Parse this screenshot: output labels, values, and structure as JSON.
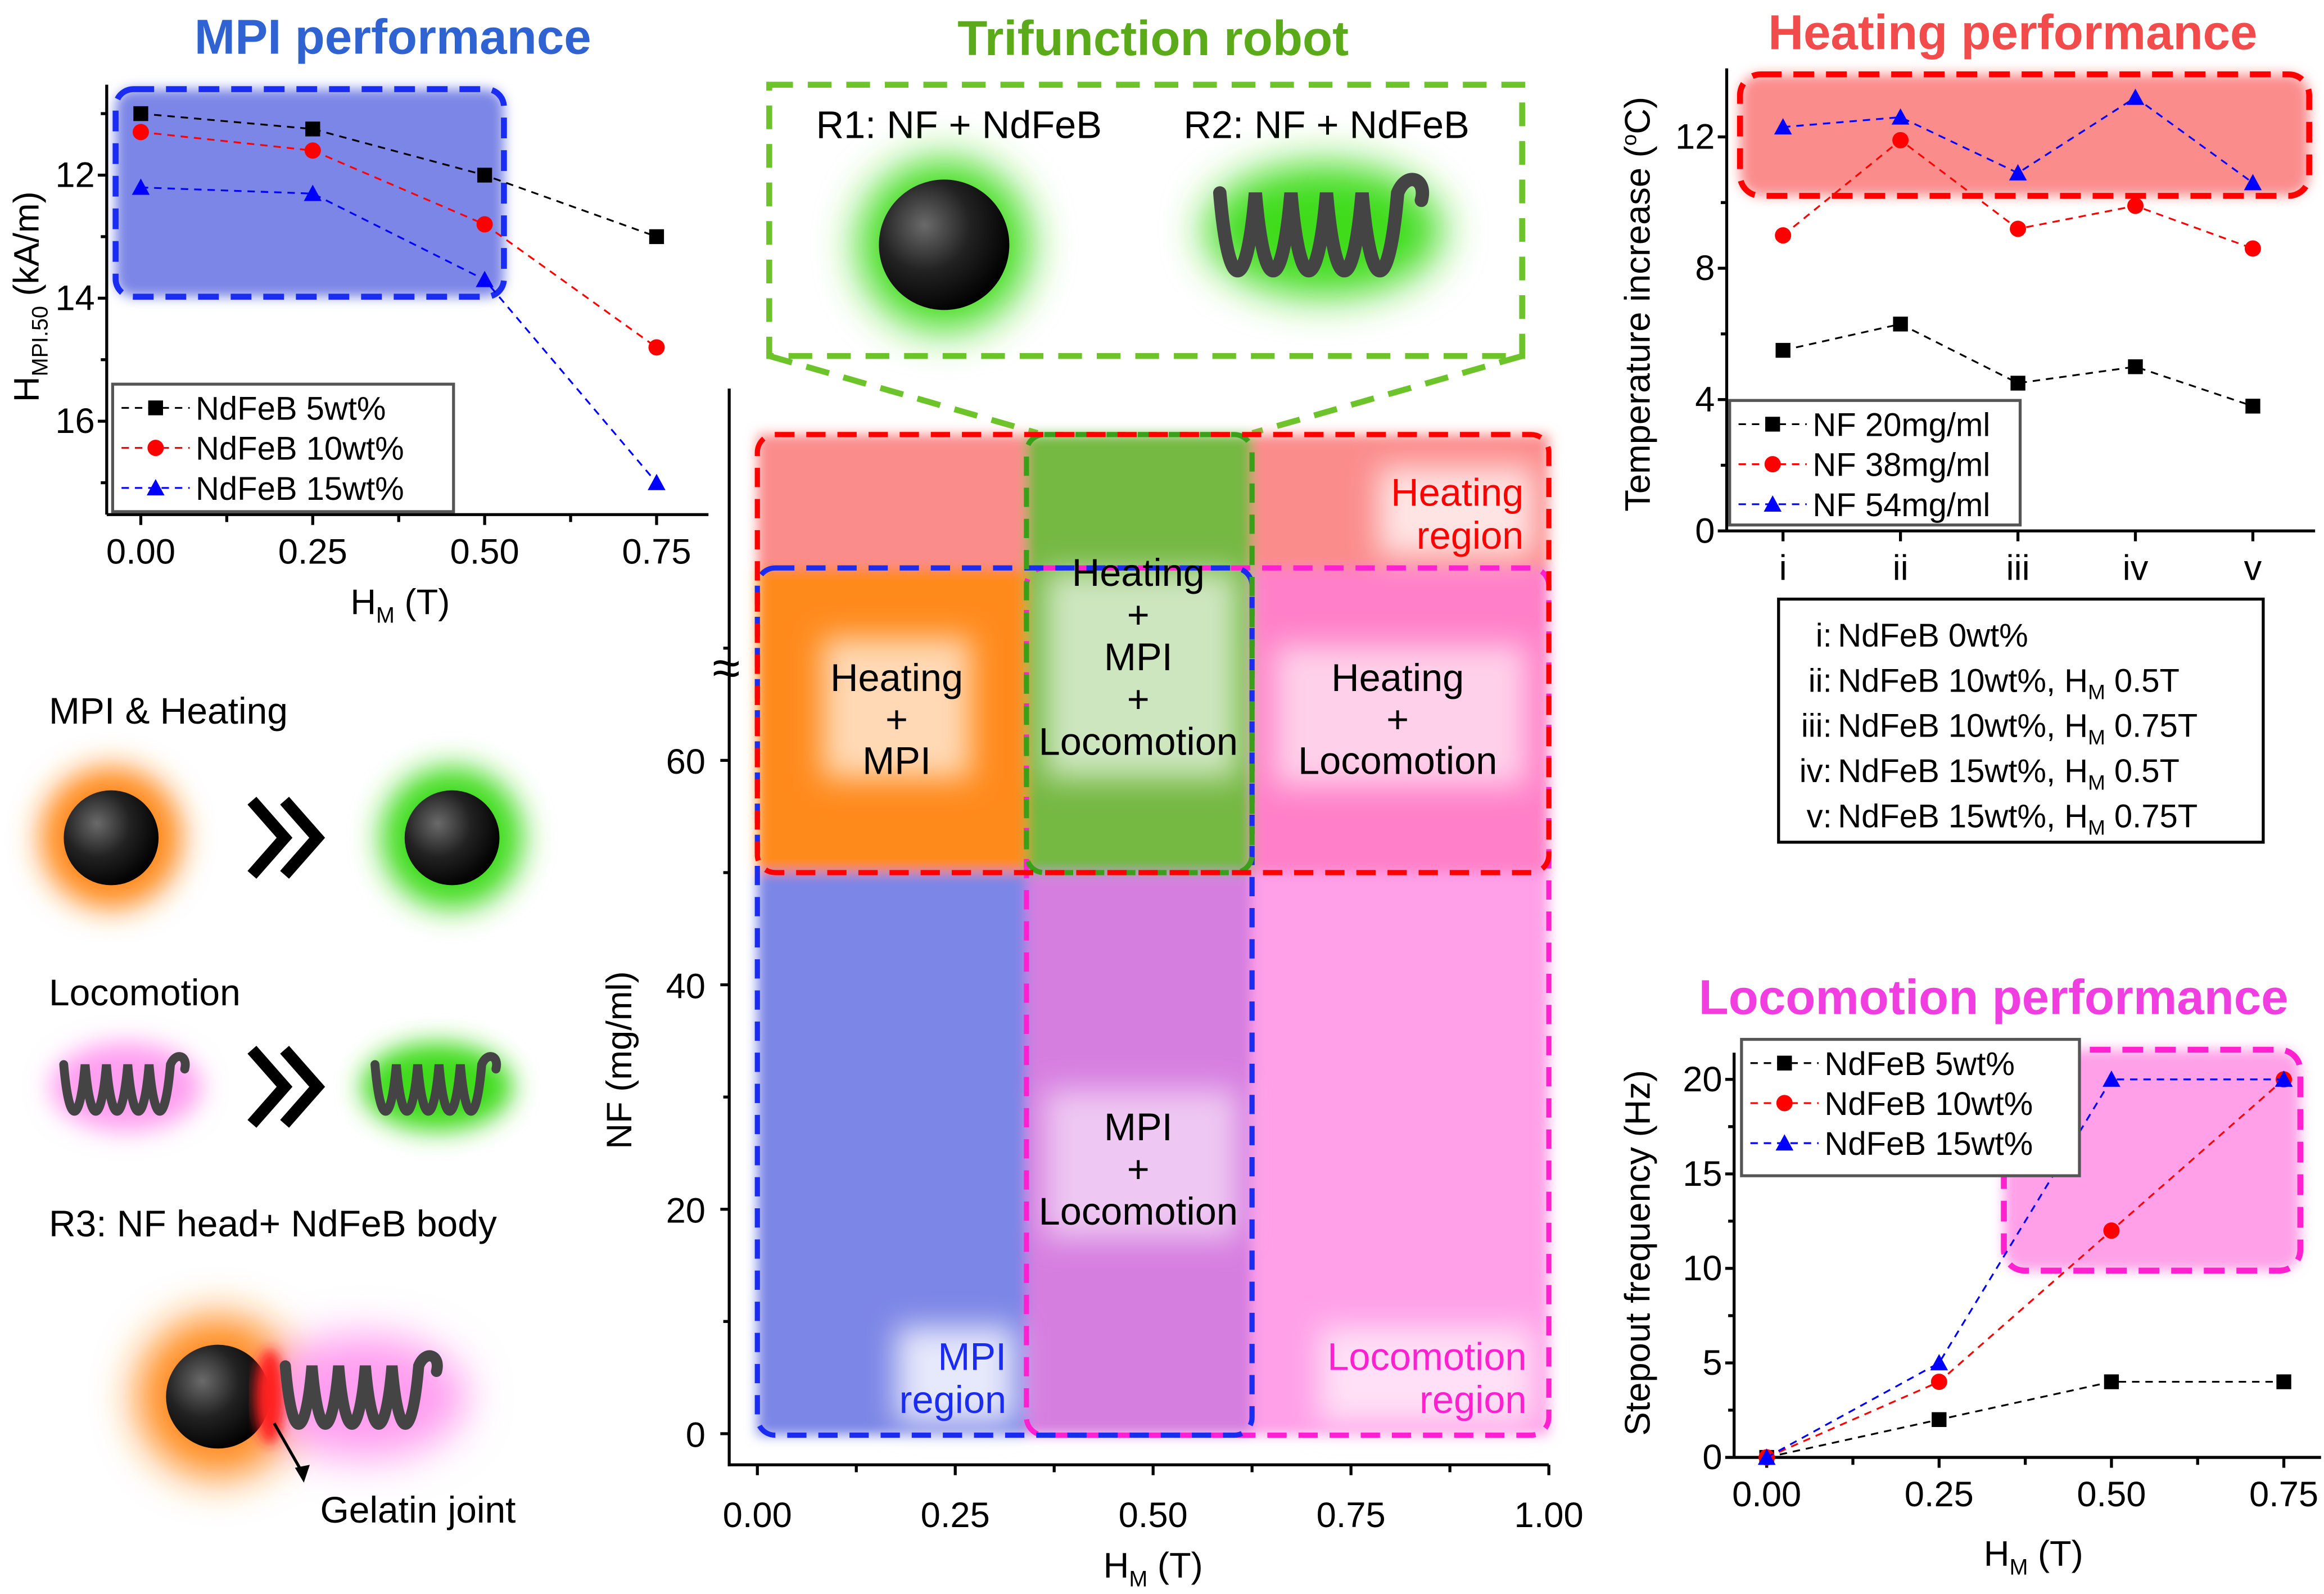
{
  "colors": {
    "mpi_blue": "#2f63d1",
    "heating_red": "#f24b4b",
    "robot_green": "#5aaa1a",
    "locomotion_magenta": "#f03ee0",
    "black": "#000000",
    "red": "#ff0000",
    "blue": "#0000ff"
  },
  "mpi_panel": {
    "title": "MPI performance"
  },
  "robot_panel": {
    "title": "Trifunction robot",
    "r1_label": "R1: NF + NdFeB",
    "r2_label": "R2: NF + NdFeB"
  },
  "heating_panel": {
    "title": "Heating performance",
    "notes": [
      {
        "key": "i:",
        "prefix": "NdFeB 0wt%",
        "sub": "",
        "suffix": ""
      },
      {
        "key": "ii:",
        "prefix": "NdFeB 10wt%, H",
        "sub": "M",
        "suffix": " 0.5T"
      },
      {
        "key": "iii:",
        "prefix": "NdFeB 10wt%, H",
        "sub": "M",
        "suffix": " 0.75T"
      },
      {
        "key": "iv:",
        "prefix": "NdFeB 15wt%, H",
        "sub": "M",
        "suffix": " 0.5T"
      },
      {
        "key": "v:",
        "prefix": "NdFeB 15wt%, H",
        "sub": "M",
        "suffix": " 0.75T"
      }
    ]
  },
  "locomotion_panel": {
    "title": "Locomotion performance"
  },
  "illustrations": {
    "mpi_heating": "MPI & Heating",
    "locomotion": "Locomotion",
    "r3": "R3: NF head+ NdFeB body",
    "gelatin": "Gelatin joint"
  },
  "chart_data": [
    {
      "id": "mpi",
      "type": "line",
      "title": "MPI performance",
      "xlabel": {
        "main": "H",
        "sub": "M",
        "rest": "  (T)"
      },
      "ylabel": {
        "main": "H",
        "sub": "MPI.50",
        "rest": " (kA/m)"
      },
      "x": [
        0,
        0.25,
        0.5,
        0.75
      ],
      "xticks": [
        "0.00",
        "0.25",
        "0.50",
        "0.75"
      ],
      "yticks": [
        "12",
        "14",
        "16"
      ],
      "ylim": [
        17.5,
        10.5
      ],
      "y_reversed": true,
      "legend": "bottom-left",
      "series": [
        {
          "name": "NdFeB 5wt%",
          "color": "#000000",
          "marker": "square",
          "values": [
            11.0,
            11.25,
            12.0,
            13.0
          ]
        },
        {
          "name": "NdFeB 10wt%",
          "color": "#ff0000",
          "marker": "circle",
          "values": [
            11.3,
            11.6,
            12.8,
            14.8
          ]
        },
        {
          "name": "NdFeB 15wt%",
          "color": "#0000ff",
          "marker": "triangle",
          "values": [
            12.2,
            12.3,
            13.7,
            17.0
          ]
        }
      ]
    },
    {
      "id": "heating",
      "type": "line",
      "title": "Heating performance",
      "ylabel": {
        "main": "Temperature increase (",
        "sup": "o",
        "rest": "C)"
      },
      "categories": [
        "i",
        "ii",
        "iii",
        "iv",
        "v"
      ],
      "yticks": [
        "0",
        "4",
        "8",
        "12"
      ],
      "ylim": [
        0,
        14
      ],
      "legend": "bottom-left",
      "series": [
        {
          "name": "NF 20mg/ml",
          "color": "#000000",
          "marker": "square",
          "values": [
            5.5,
            6.3,
            4.5,
            5.0,
            3.8
          ]
        },
        {
          "name": "NF 38mg/ml",
          "color": "#ff0000",
          "marker": "circle",
          "values": [
            9.0,
            11.9,
            9.2,
            9.9,
            8.6
          ]
        },
        {
          "name": "NF 54mg/ml",
          "color": "#0000ff",
          "marker": "triangle",
          "values": [
            12.3,
            12.6,
            10.9,
            13.2,
            10.6
          ]
        }
      ]
    },
    {
      "id": "locomotion",
      "type": "line",
      "title": "Locomotion performance",
      "xlabel": {
        "main": "H",
        "sub": "M",
        "rest": " (T)"
      },
      "ylabel": {
        "main": "Stepout frequency (Hz)"
      },
      "x": [
        0,
        0.25,
        0.5,
        0.75
      ],
      "xticks": [
        "0.00",
        "0.25",
        "0.50",
        "0.75"
      ],
      "yticks": [
        "0",
        "5",
        "10",
        "15",
        "20"
      ],
      "ylim": [
        0,
        22
      ],
      "legend": "top-left",
      "series": [
        {
          "name": "NdFeB 5wt%",
          "color": "#000000",
          "marker": "square",
          "values": [
            0,
            2,
            4,
            4
          ]
        },
        {
          "name": "NdFeB 10wt%",
          "color": "#ff0000",
          "marker": "circle",
          "values": [
            0,
            4,
            12,
            20
          ]
        },
        {
          "name": "NdFeB 15wt%",
          "color": "#0000ff",
          "marker": "triangle",
          "values": [
            0,
            5,
            20,
            20
          ]
        }
      ]
    },
    {
      "id": "map",
      "type": "heatmap",
      "xlabel": {
        "main": "H",
        "sub": "M",
        "rest": " (T)"
      },
      "ylabel": {
        "main": "NF (mg/ml)"
      },
      "xticks": [
        "0.00",
        "0.25",
        "0.50",
        "0.75",
        "1.00"
      ],
      "yticks": [
        "0",
        "20",
        "40",
        "60"
      ],
      "xlim": [
        0,
        1.0
      ],
      "y_axis_break": true,
      "regions": [
        {
          "name": "Heating region",
          "label": [
            "Heating",
            "region"
          ],
          "color": "#ff0000",
          "xrange": [
            0,
            1.0
          ],
          "nf_min": 50
        },
        {
          "name": "MPI region",
          "label": [
            "MPI",
            "region"
          ],
          "color": "#1a2cf0",
          "xrange": [
            0,
            0.625
          ]
        },
        {
          "name": "Locomotion region",
          "label": [
            "Locomotion",
            "region"
          ],
          "color": "#ff20d0",
          "xrange": [
            0.34,
            1.0
          ]
        }
      ],
      "overlaps": [
        {
          "label": [
            "Heating",
            "+",
            "MPI"
          ]
        },
        {
          "label": [
            "Heating",
            "+",
            "MPI",
            "+",
            "Locomotion"
          ]
        },
        {
          "label": [
            "Heating",
            "+",
            "Locomotion"
          ]
        },
        {
          "label": [
            "MPI",
            "+",
            "Locomotion"
          ]
        }
      ]
    }
  ]
}
